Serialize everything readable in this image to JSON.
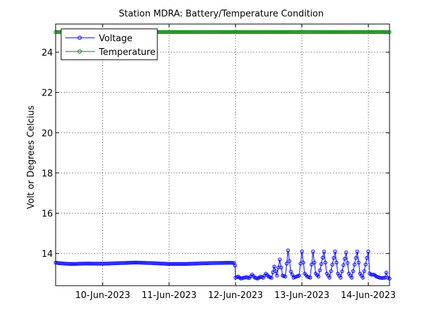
{
  "chart_data": {
    "type": "line",
    "title": "Station MDRA: Battery/Temperature Condition",
    "ylabel": "Volt or Degrees Celcius",
    "xlabel": "",
    "x_range": [
      "2023-06-09 07:00",
      "2023-06-14 07:40"
    ],
    "ylim": [
      12.4,
      25.4
    ],
    "yticks": [
      14,
      16,
      18,
      20,
      22,
      24
    ],
    "xticks": [
      "10-Jun-2023",
      "11-Jun-2023",
      "12-Jun-2023",
      "13-Jun-2023",
      "14-Jun-2023"
    ],
    "grid": true,
    "legend": {
      "placement": "top-left",
      "entries": [
        "Voltage",
        "Temperature"
      ]
    },
    "series": [
      {
        "name": "Voltage",
        "color": "#0000ff",
        "marker": "circle",
        "points": [
          [
            "2023-06-09 07:00",
            13.55
          ],
          [
            "2023-06-09 08:00",
            13.52
          ],
          [
            "2023-06-09 10:00",
            13.5
          ],
          [
            "2023-06-09 12:00",
            13.48
          ],
          [
            "2023-06-09 14:00",
            13.48
          ],
          [
            "2023-06-09 18:00",
            13.5
          ],
          [
            "2023-06-10 00:00",
            13.49
          ],
          [
            "2023-06-10 06:00",
            13.52
          ],
          [
            "2023-06-10 12:00",
            13.55
          ],
          [
            "2023-06-10 18:00",
            13.52
          ],
          [
            "2023-06-11 00:00",
            13.48
          ],
          [
            "2023-06-11 06:00",
            13.48
          ],
          [
            "2023-06-11 12:00",
            13.51
          ],
          [
            "2023-06-11 18:00",
            13.53
          ],
          [
            "2023-06-11 22:00",
            13.54
          ],
          [
            "2023-06-11 23:30",
            13.53
          ],
          [
            "2023-06-11 23:50",
            13.4
          ],
          [
            "2023-06-12 00:00",
            12.8
          ],
          [
            "2023-06-12 01:00",
            12.85
          ],
          [
            "2023-06-12 02:00",
            12.75
          ],
          [
            "2023-06-12 03:00",
            12.8
          ],
          [
            "2023-06-12 04:00",
            12.82
          ],
          [
            "2023-06-12 05:00",
            12.78
          ],
          [
            "2023-06-12 06:00",
            12.95
          ],
          [
            "2023-06-12 07:00",
            12.8
          ],
          [
            "2023-06-12 08:00",
            12.75
          ],
          [
            "2023-06-12 09:00",
            12.85
          ],
          [
            "2023-06-12 10:00",
            12.8
          ],
          [
            "2023-06-12 11:00",
            13.0
          ],
          [
            "2023-06-12 12:00",
            12.85
          ],
          [
            "2023-06-12 13:00",
            12.78
          ],
          [
            "2023-06-12 14:00",
            13.35
          ],
          [
            "2023-06-12 15:00",
            12.9
          ],
          [
            "2023-06-12 16:00",
            13.7
          ],
          [
            "2023-06-12 17:00",
            12.9
          ],
          [
            "2023-06-12 18:00",
            12.85
          ],
          [
            "2023-06-12 19:00",
            14.15
          ],
          [
            "2023-06-12 20:00",
            13.1
          ],
          [
            "2023-06-12 21:00",
            12.8
          ],
          [
            "2023-06-12 22:00",
            12.85
          ],
          [
            "2023-06-12 23:00",
            12.9
          ],
          [
            "2023-06-13 00:00",
            14.1
          ],
          [
            "2023-06-13 01:00",
            13.0
          ],
          [
            "2023-06-13 02:00",
            12.85
          ],
          [
            "2023-06-13 03:00",
            12.8
          ],
          [
            "2023-06-13 04:00",
            14.1
          ],
          [
            "2023-06-13 05:00",
            13.0
          ],
          [
            "2023-06-13 06:00",
            12.85
          ],
          [
            "2023-06-13 08:00",
            14.1
          ],
          [
            "2023-06-13 09:00",
            13.0
          ],
          [
            "2023-06-13 10:00",
            12.8
          ],
          [
            "2023-06-13 12:00",
            14.1
          ],
          [
            "2023-06-13 13:00",
            13.0
          ],
          [
            "2023-06-13 14:00",
            12.8
          ],
          [
            "2023-06-13 16:00",
            14.05
          ],
          [
            "2023-06-13 17:00",
            13.0
          ],
          [
            "2023-06-13 18:00",
            12.8
          ],
          [
            "2023-06-13 20:00",
            14.1
          ],
          [
            "2023-06-13 21:00",
            13.0
          ],
          [
            "2023-06-13 22:00",
            12.8
          ],
          [
            "2023-06-14 00:00",
            14.1
          ],
          [
            "2023-06-14 00:30",
            13.0
          ],
          [
            "2023-06-14 01:00",
            12.95
          ],
          [
            "2023-06-14 02:00",
            12.95
          ],
          [
            "2023-06-14 03:00",
            12.85
          ],
          [
            "2023-06-14 04:00",
            12.8
          ],
          [
            "2023-06-14 05:00",
            12.78
          ],
          [
            "2023-06-14 06:00",
            12.8
          ],
          [
            "2023-06-14 06:30",
            13.05
          ],
          [
            "2023-06-14 07:00",
            12.8
          ],
          [
            "2023-06-14 07:40",
            12.75
          ]
        ]
      },
      {
        "name": "Temperature",
        "color": "#008000",
        "marker": "circle",
        "points": [
          [
            "2023-06-09 07:00",
            25.0
          ],
          [
            "2023-06-10 00:00",
            25.0
          ],
          [
            "2023-06-11 00:00",
            25.0
          ],
          [
            "2023-06-12 00:00",
            25.0
          ],
          [
            "2023-06-13 00:00",
            25.0
          ],
          [
            "2023-06-14 00:00",
            25.0
          ],
          [
            "2023-06-14 07:40",
            25.0
          ]
        ]
      }
    ]
  }
}
